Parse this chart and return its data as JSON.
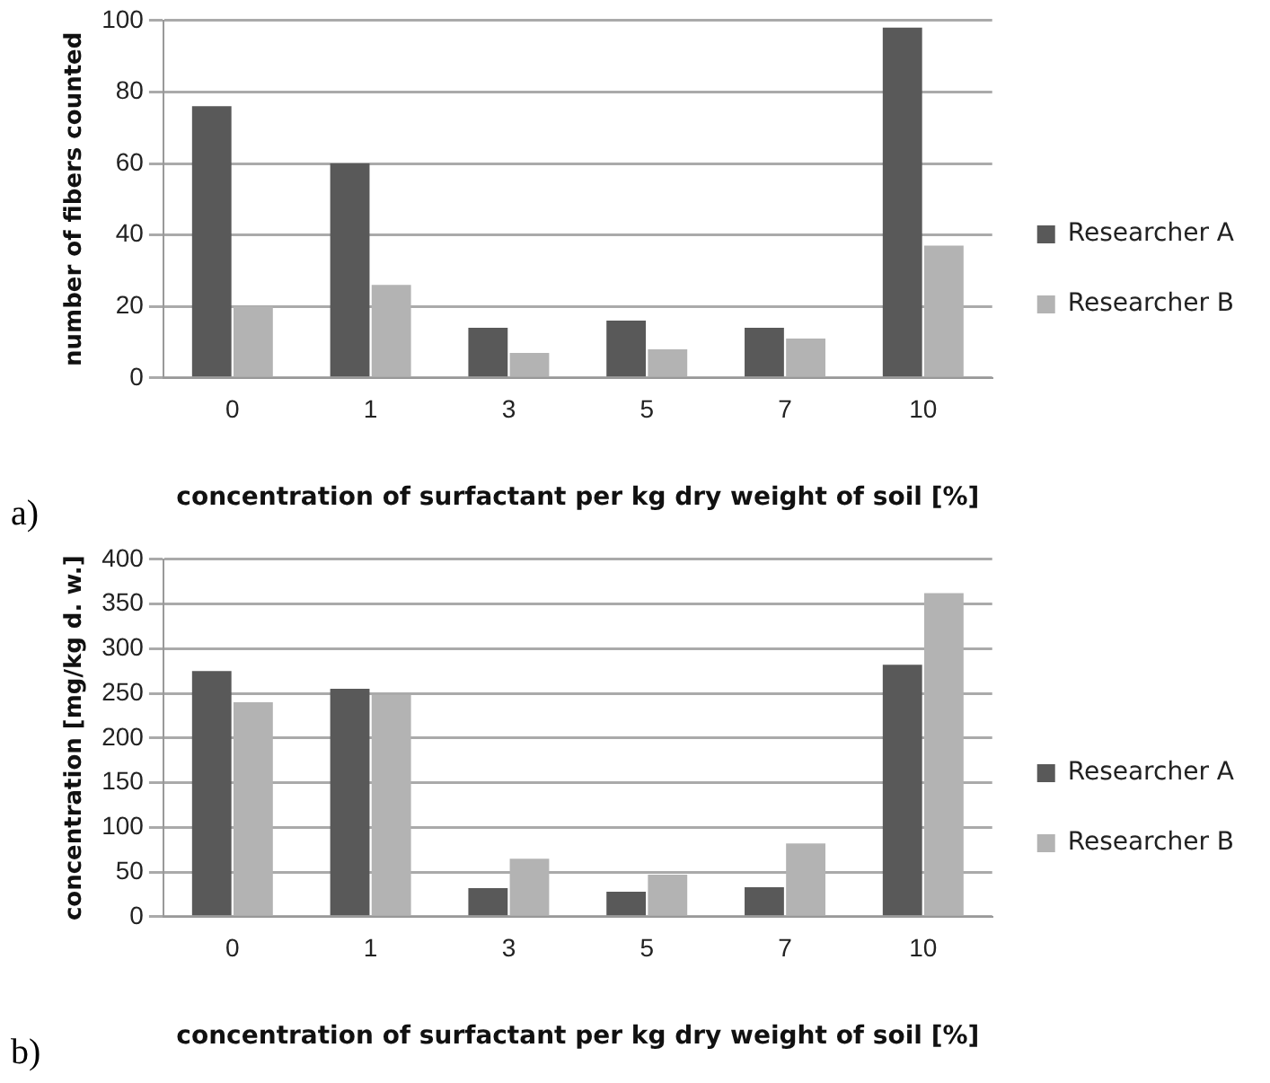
{
  "chart_data": [
    {
      "type": "bar",
      "categories": [
        "0",
        "1",
        "3",
        "5",
        "7",
        "10"
      ],
      "xlabel": "concentration of surfactant per kg dry weight of soil [%]",
      "ylabel": "number of fibers counted",
      "annotations": [
        "a)"
      ],
      "series": [
        {
          "name": "Researcher A",
          "color": "#595959",
          "values": [
            76,
            60,
            14,
            16,
            14,
            98
          ]
        },
        {
          "name": "Researcher B",
          "color": "#b3b3b3",
          "values": [
            20,
            26,
            7,
            8,
            11,
            37
          ]
        }
      ],
      "ylim": [
        0,
        100
      ],
      "yticks": [
        0,
        20,
        40,
        60,
        80,
        100
      ],
      "grid": "y",
      "legend": "right"
    },
    {
      "type": "bar",
      "categories": [
        "0",
        "1",
        "3",
        "5",
        "7",
        "10"
      ],
      "xlabel": "concentration of surfactant per kg dry weight of soil [%]",
      "ylabel": "concentration [mg/kg d. w.]",
      "annotations": [
        "b)"
      ],
      "series": [
        {
          "name": "Researcher A",
          "color": "#595959",
          "values": [
            275,
            255,
            32,
            28,
            33,
            282
          ]
        },
        {
          "name": "Researcher B",
          "color": "#b3b3b3",
          "values": [
            240,
            248,
            65,
            47,
            82,
            362
          ]
        }
      ],
      "ylim": [
        0,
        400
      ],
      "yticks": [
        0,
        50,
        100,
        150,
        200,
        250,
        300,
        350,
        400
      ],
      "grid": "y",
      "legend": "right"
    }
  ]
}
